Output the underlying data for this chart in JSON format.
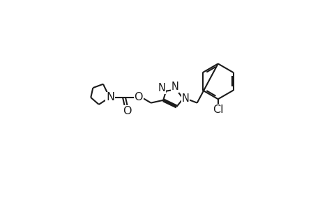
{
  "background_color": "#ffffff",
  "line_color": "#1a1a1a",
  "line_width": 1.5,
  "font_size": 10.5,
  "figsize": [
    4.6,
    3.0
  ],
  "dpi": 100,
  "xlim": [
    0,
    460
  ],
  "ylim": [
    0,
    300
  ]
}
